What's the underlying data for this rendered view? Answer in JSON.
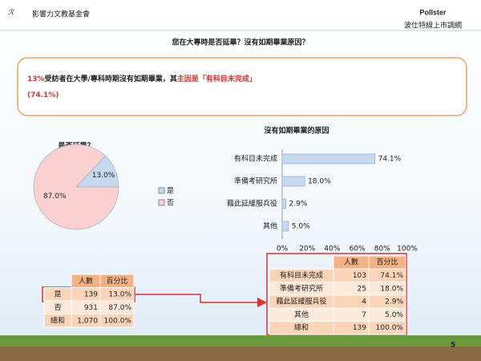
{
  "logo": {
    "left": "影響力文教基金會",
    "right": "Pollster",
    "right_sub": "波仕特線上市調網"
  },
  "title": "您在大專時是否延畢？沒有如期畢業原因？",
  "callout": {
    "lines": [
      [
        {
          "text": "13%",
          "color": "#e03030"
        },
        {
          "text": "受訪者在大學/專科時期沒有如期畢業，其",
          "color": "#222222"
        },
        {
          "text": "主因是「有科目未完成」",
          "color": "#e03030"
        }
      ],
      [
        {
          "text": "(74.1%)",
          "color": "#e03030"
        }
      ]
    ]
  },
  "chart_data": [
    {
      "type": "pie",
      "title": "是否延畢？",
      "categories": [
        "是",
        "否"
      ],
      "values": [
        13.0,
        87.0
      ],
      "value_labels": [
        "13.0%",
        "87.0%"
      ],
      "colors": [
        "#c6d9f1",
        "#fbd0d0"
      ]
    },
    {
      "type": "hbar",
      "title": "沒有如期畢業的原因",
      "categories": [
        "有科目未完成",
        "準備考研究所",
        "藉此延緩服兵役",
        "其他"
      ],
      "values": [
        74.1,
        18.0,
        2.9,
        5.0
      ],
      "value_labels": [
        "74.1%",
        "18.0%",
        "2.9%",
        "5.0%"
      ],
      "color": "#c6d9f1",
      "xlim": [
        0,
        100
      ],
      "xticks": [
        {
          "value": 0,
          "label": "0%"
        },
        {
          "value": 20,
          "label": "20%"
        },
        {
          "value": 40,
          "label": "40%"
        },
        {
          "value": 60,
          "label": "60%"
        },
        {
          "value": 80,
          "label": "80%"
        },
        {
          "value": 100,
          "label": "100%"
        }
      ]
    }
  ],
  "table_left": {
    "header": [
      "人數",
      "百分比"
    ],
    "rows": [
      [
        "是",
        "139",
        "13.0%"
      ],
      [
        "否",
        "931",
        "87.0%"
      ],
      [
        "總和",
        "1,070",
        "100.0%"
      ]
    ]
  },
  "table_right": {
    "header": [
      "人數",
      "百分比"
    ],
    "rows": [
      [
        "有科目未完成",
        "103",
        "74.1%"
      ],
      [
        "準備考研究所",
        "25",
        "18.0%"
      ],
      [
        "藉此延緩服兵役",
        "4",
        "2.9%"
      ],
      [
        "其他",
        "7",
        "5.0%"
      ],
      [
        "總和",
        "139",
        "100.0%"
      ]
    ]
  },
  "page_number": "5"
}
